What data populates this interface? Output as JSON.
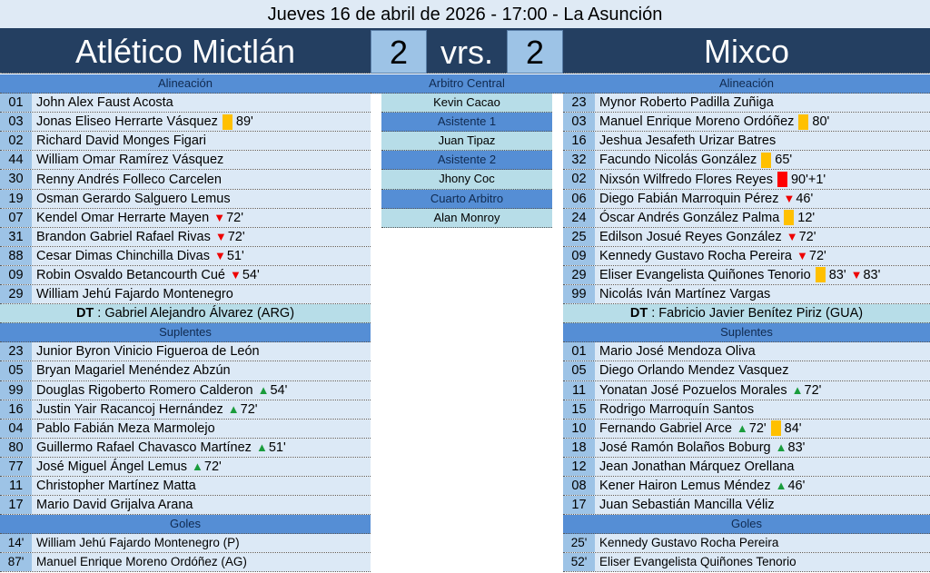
{
  "title": "Jueves 16 de abril de 2026 - 17:00 - La Asunción",
  "home": {
    "name": "Atlético Mictlán",
    "score": "2"
  },
  "vs": "vrs.",
  "away": {
    "name": "Mixco",
    "score": "2"
  },
  "labels": {
    "lineup": "Alineación",
    "subs": "Suplentes",
    "goals": "Goles",
    "dt": "DT"
  },
  "colors": {
    "navy": "#243f61",
    "section": "#558ed5",
    "number_cell": "#9dc3e6",
    "name_cell": "#dce9f6",
    "yellow_card": "#ffc000",
    "red_card": "#ff0000",
    "sub_off": "#ee0000",
    "sub_on": "#1a9c3c"
  },
  "officials": [
    {
      "role": "Arbitro Central",
      "name": "Kevin Cacao"
    },
    {
      "role": "Asistente 1",
      "name": "Juan Tipaz"
    },
    {
      "role": "Asistente 2",
      "name": "Jhony Coc"
    },
    {
      "role": "Cuarto Arbitro",
      "name": "Alan Monroy"
    }
  ],
  "home_team": {
    "lineup": [
      {
        "num": "01",
        "name": "John Alex Faust Acosta",
        "events": []
      },
      {
        "num": "03",
        "name": "Jonas Eliseo Herrarte Vásquez",
        "events": [
          {
            "type": "yellow",
            "min": "89'"
          }
        ]
      },
      {
        "num": "02",
        "name": "Richard David Monges Figari",
        "events": []
      },
      {
        "num": "44",
        "name": "William Omar Ramírez Vásquez",
        "events": []
      },
      {
        "num": "30",
        "name": "Renny Andrés Folleco Carcelen",
        "events": []
      },
      {
        "num": "19",
        "name": "Osman Gerardo Salguero Lemus",
        "events": []
      },
      {
        "num": "07",
        "name": "Kendel Omar Herrarte Mayen",
        "events": [
          {
            "type": "off",
            "min": "72'"
          }
        ]
      },
      {
        "num": "31",
        "name": "Brandon Gabriel Rafael Rivas",
        "events": [
          {
            "type": "off",
            "min": "72'"
          }
        ]
      },
      {
        "num": "88",
        "name": "Cesar Dimas Chinchilla Divas",
        "events": [
          {
            "type": "off",
            "min": "51'"
          }
        ]
      },
      {
        "num": "09",
        "name": "Robin Osvaldo Betancourth Cué",
        "events": [
          {
            "type": "off",
            "min": "54'"
          }
        ]
      },
      {
        "num": "29",
        "name": "William Jehú Fajardo Montenegro",
        "events": []
      }
    ],
    "dt": "Gabriel Alejandro Álvarez (ARG)",
    "subs": [
      {
        "num": "23",
        "name": "Junior Byron Vinicio Figueroa de León",
        "events": []
      },
      {
        "num": "05",
        "name": "Bryan Magariel Menéndez Abzún",
        "events": []
      },
      {
        "num": "99",
        "name": "Douglas Rigoberto Romero Calderon",
        "events": [
          {
            "type": "on",
            "min": "54'"
          }
        ]
      },
      {
        "num": "16",
        "name": "Justin Yair Racancoj Hernández",
        "events": [
          {
            "type": "on",
            "min": "72'"
          }
        ]
      },
      {
        "num": "04",
        "name": "Pablo Fabián Meza Marmolejo",
        "events": []
      },
      {
        "num": "80",
        "name": "Guillermo Rafael Chavasco Martínez",
        "events": [
          {
            "type": "on",
            "min": "51'"
          }
        ]
      },
      {
        "num": "77",
        "name": "José Miguel Ángel Lemus",
        "events": [
          {
            "type": "on",
            "min": "72'"
          }
        ]
      },
      {
        "num": "11",
        "name": "Christopher Martínez Matta",
        "events": []
      },
      {
        "num": "17",
        "name": "Mario David Grijalva Arana",
        "events": []
      }
    ],
    "goals": [
      {
        "min": "14'",
        "name": "William Jehú Fajardo Montenegro (P)"
      },
      {
        "min": "87'",
        "name": "Manuel Enrique Moreno Ordóñez (AG)"
      }
    ]
  },
  "away_team": {
    "lineup": [
      {
        "num": "23",
        "name": "Mynor Roberto Padilla Zuñiga",
        "events": []
      },
      {
        "num": "03",
        "name": "Manuel Enrique Moreno Ordóñez",
        "events": [
          {
            "type": "yellow",
            "min": "80'"
          }
        ]
      },
      {
        "num": "16",
        "name": "Jeshua Jesafeth Urizar Batres",
        "events": []
      },
      {
        "num": "32",
        "name": "Facundo Nicolás González",
        "events": [
          {
            "type": "yellow",
            "min": "65'"
          }
        ]
      },
      {
        "num": "02",
        "name": "Nixsón Wilfredo Flores Reyes",
        "events": [
          {
            "type": "red",
            "min": "90'+1'"
          }
        ]
      },
      {
        "num": "06",
        "name": "Diego Fabián Marroquin Pérez",
        "events": [
          {
            "type": "off",
            "min": "46'"
          }
        ]
      },
      {
        "num": "24",
        "name": "Óscar Andrés González Palma",
        "events": [
          {
            "type": "yellow",
            "min": "12'"
          }
        ]
      },
      {
        "num": "25",
        "name": "Edilson Josué Reyes González",
        "events": [
          {
            "type": "off",
            "min": "72'"
          }
        ]
      },
      {
        "num": "09",
        "name": "Kennedy Gustavo Rocha Pereira",
        "events": [
          {
            "type": "off",
            "min": "72'"
          }
        ]
      },
      {
        "num": "29",
        "name": "Eliser Evangelista Quiñones Tenorio",
        "events": [
          {
            "type": "yellow",
            "min": "83'"
          },
          {
            "type": "off",
            "min": "83'"
          }
        ]
      },
      {
        "num": "99",
        "name": "Nicolás Iván Martínez Vargas",
        "events": []
      }
    ],
    "dt": "Fabricio Javier Benítez Piriz (GUA)",
    "subs": [
      {
        "num": "01",
        "name": "Mario José Mendoza Oliva",
        "events": []
      },
      {
        "num": "05",
        "name": "Diego Orlando Mendez Vasquez",
        "events": []
      },
      {
        "num": "11",
        "name": "Yonatan José Pozuelos Morales",
        "events": [
          {
            "type": "on",
            "min": "72'"
          }
        ]
      },
      {
        "num": "15",
        "name": "Rodrigo Marroquín Santos",
        "events": []
      },
      {
        "num": "10",
        "name": "Fernando Gabriel Arce",
        "events": [
          {
            "type": "on",
            "min": "72'"
          },
          {
            "type": "yellow",
            "min": "84'"
          }
        ]
      },
      {
        "num": "18",
        "name": "José Ramón Bolaños Boburg",
        "events": [
          {
            "type": "on",
            "min": "83'"
          }
        ]
      },
      {
        "num": "12",
        "name": "Jean Jonathan Márquez Orellana",
        "events": []
      },
      {
        "num": "08",
        "name": "Kener Hairon Lemus Méndez",
        "events": [
          {
            "type": "on",
            "min": "46'"
          }
        ]
      },
      {
        "num": "17",
        "name": "Juan Sebastián Mancilla Véliz",
        "events": []
      }
    ],
    "goals": [
      {
        "min": "25'",
        "name": "Kennedy Gustavo Rocha Pereira"
      },
      {
        "min": "52'",
        "name": "Eliser Evangelista Quiñones Tenorio"
      }
    ]
  }
}
